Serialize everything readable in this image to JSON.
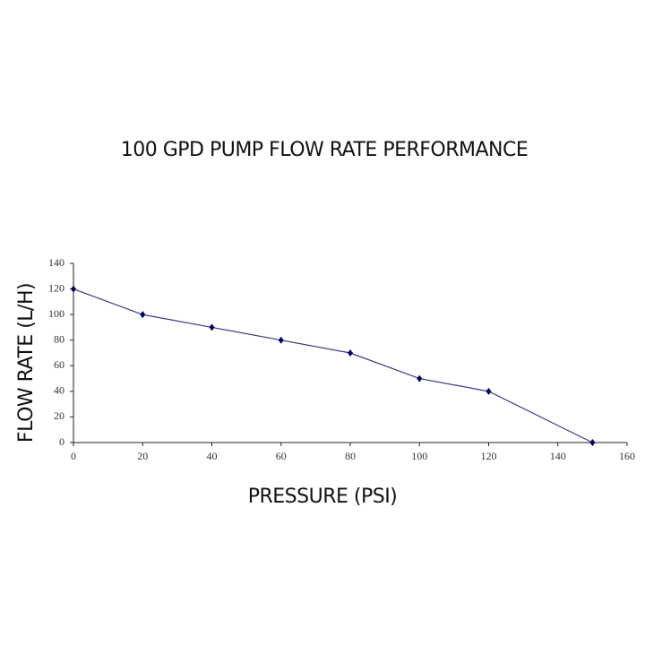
{
  "chart_data": {
    "type": "line",
    "title": "100 GPD PUMP FLOW RATE PERFORMANCE",
    "x_label": "PRESSURE (PSI)",
    "y_label": "FLOW RATE (L/H)",
    "x": [
      0,
      20,
      40,
      60,
      80,
      100,
      120,
      150
    ],
    "values": [
      120,
      100,
      90,
      80,
      70,
      50,
      40,
      0
    ],
    "color": "#3a3a85",
    "marker_color": "#000066",
    "xlim": [
      0,
      160
    ],
    "xticks": [
      0,
      20,
      40,
      60,
      80,
      100,
      120,
      140,
      160
    ],
    "ylim": [
      0,
      140
    ],
    "yticks": [
      0,
      20,
      40,
      60,
      80,
      100,
      120,
      140
    ],
    "grid": false
  }
}
